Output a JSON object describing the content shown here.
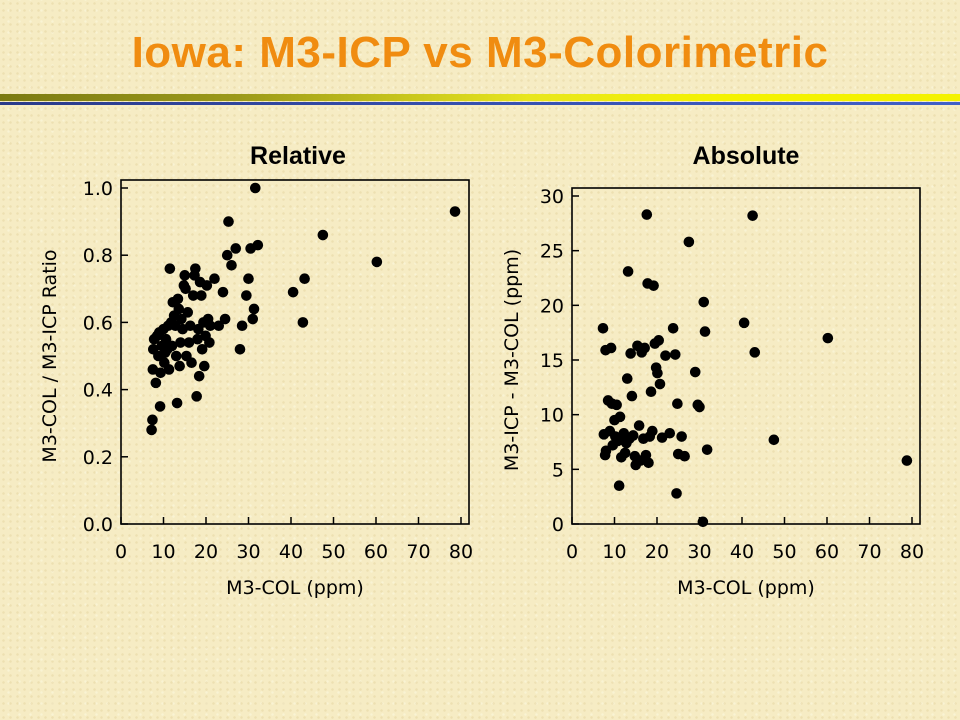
{
  "slide": {
    "title": "Iowa: M3-ICP vs M3-Colorimetric",
    "title_color": "#f08c10",
    "background_color": "#f6ecc4"
  },
  "chart_data": [
    {
      "type": "scatter",
      "title": "Relative",
      "xlabel": "M3-COL (ppm)",
      "ylabel": "M3-COL / M3-ICP Ratio",
      "xlim": [
        0,
        80
      ],
      "ylim": [
        0,
        1.0
      ],
      "x_ticks": [
        "0",
        "10",
        "20",
        "30",
        "40",
        "50",
        "60",
        "70",
        "80"
      ],
      "y_ticks": [
        "0.0",
        "0.2",
        "0.4",
        "0.6",
        "0.8",
        "1.0"
      ],
      "grid": false,
      "marker_color": "#000000",
      "points": [
        [
          7.2,
          0.28
        ],
        [
          7.4,
          0.31
        ],
        [
          7.5,
          0.46
        ],
        [
          7.6,
          0.52
        ],
        [
          7.8,
          0.55
        ],
        [
          8.2,
          0.42
        ],
        [
          8.5,
          0.56
        ],
        [
          8.8,
          0.5
        ],
        [
          9.0,
          0.57
        ],
        [
          9.2,
          0.35
        ],
        [
          9.3,
          0.45
        ],
        [
          9.6,
          0.53
        ],
        [
          10.0,
          0.58
        ],
        [
          10.2,
          0.48
        ],
        [
          10.4,
          0.51
        ],
        [
          10.6,
          0.55
        ],
        [
          10.9,
          0.52
        ],
        [
          11.1,
          0.59
        ],
        [
          11.3,
          0.46
        ],
        [
          11.5,
          0.76
        ],
        [
          11.8,
          0.6
        ],
        [
          12.0,
          0.53
        ],
        [
          12.2,
          0.66
        ],
        [
          12.5,
          0.62
        ],
        [
          12.8,
          0.59
        ],
        [
          13.0,
          0.5
        ],
        [
          13.2,
          0.36
        ],
        [
          13.4,
          0.67
        ],
        [
          13.6,
          0.64
        ],
        [
          13.8,
          0.47
        ],
        [
          14.0,
          0.54
        ],
        [
          14.2,
          0.61
        ],
        [
          14.5,
          0.58
        ],
        [
          14.8,
          0.71
        ],
        [
          15.0,
          0.74
        ],
        [
          15.2,
          0.7
        ],
        [
          15.4,
          0.5
        ],
        [
          15.7,
          0.63
        ],
        [
          16.0,
          0.54
        ],
        [
          16.3,
          0.59
        ],
        [
          16.6,
          0.48
        ],
        [
          17.0,
          0.68
        ],
        [
          17.3,
          0.74
        ],
        [
          17.5,
          0.76
        ],
        [
          17.8,
          0.38
        ],
        [
          18.0,
          0.55
        ],
        [
          18.2,
          0.58
        ],
        [
          18.4,
          0.44
        ],
        [
          18.6,
          0.72
        ],
        [
          18.9,
          0.68
        ],
        [
          19.1,
          0.52
        ],
        [
          19.4,
          0.6
        ],
        [
          19.6,
          0.47
        ],
        [
          19.9,
          0.56
        ],
        [
          20.2,
          0.71
        ],
        [
          20.5,
          0.61
        ],
        [
          20.8,
          0.54
        ],
        [
          21.0,
          0.59
        ],
        [
          22.0,
          0.73
        ],
        [
          23.0,
          0.59
        ],
        [
          24.0,
          0.69
        ],
        [
          24.5,
          0.61
        ],
        [
          25.0,
          0.8
        ],
        [
          25.3,
          0.9
        ],
        [
          26.0,
          0.77
        ],
        [
          27.0,
          0.82
        ],
        [
          28.0,
          0.52
        ],
        [
          28.5,
          0.59
        ],
        [
          29.5,
          0.68
        ],
        [
          30.0,
          0.73
        ],
        [
          30.5,
          0.82
        ],
        [
          31.0,
          0.61
        ],
        [
          31.3,
          0.64
        ],
        [
          31.6,
          1.0
        ],
        [
          32.2,
          0.83
        ],
        [
          40.5,
          0.69
        ],
        [
          42.8,
          0.6
        ],
        [
          43.2,
          0.73
        ],
        [
          47.5,
          0.86
        ],
        [
          60.2,
          0.78
        ],
        [
          78.6,
          0.93
        ]
      ]
    },
    {
      "type": "scatter",
      "title": "Absolute",
      "xlabel": "M3-COL (ppm)",
      "ylabel": "M3-ICP  -  M3-COL (ppm)",
      "xlim": [
        0,
        80
      ],
      "ylim": [
        0,
        30
      ],
      "x_ticks": [
        "0",
        "10",
        "20",
        "30",
        "40",
        "50",
        "60",
        "70",
        "80"
      ],
      "y_ticks": [
        "0",
        "5",
        "10",
        "15",
        "20",
        "25",
        "30"
      ],
      "grid": false,
      "marker_color": "#000000",
      "points": [
        [
          7.3,
          17.9
        ],
        [
          7.5,
          8.2
        ],
        [
          7.8,
          6.3
        ],
        [
          7.9,
          15.9
        ],
        [
          8.0,
          6.7
        ],
        [
          8.5,
          11.3
        ],
        [
          8.9,
          8.5
        ],
        [
          9.2,
          16.1
        ],
        [
          9.4,
          11.0
        ],
        [
          9.6,
          7.2
        ],
        [
          10.0,
          9.5
        ],
        [
          10.2,
          8.0
        ],
        [
          10.5,
          10.9
        ],
        [
          10.8,
          7.6
        ],
        [
          11.1,
          3.5
        ],
        [
          11.3,
          9.8
        ],
        [
          11.6,
          6.1
        ],
        [
          11.9,
          7.9
        ],
        [
          12.2,
          8.3
        ],
        [
          12.5,
          6.5
        ],
        [
          12.8,
          7.4
        ],
        [
          13.0,
          13.3
        ],
        [
          13.2,
          23.1
        ],
        [
          13.5,
          7.8
        ],
        [
          13.8,
          15.6
        ],
        [
          14.1,
          11.7
        ],
        [
          14.4,
          8.1
        ],
        [
          14.8,
          6.2
        ],
        [
          15.0,
          5.4
        ],
        [
          15.4,
          16.3
        ],
        [
          15.8,
          9.0
        ],
        [
          16.1,
          5.8
        ],
        [
          16.4,
          15.7
        ],
        [
          16.8,
          7.8
        ],
        [
          17.1,
          16.1
        ],
        [
          17.4,
          6.3
        ],
        [
          17.6,
          28.3
        ],
        [
          17.8,
          22.0
        ],
        [
          18.0,
          5.6
        ],
        [
          18.3,
          8.0
        ],
        [
          18.6,
          12.1
        ],
        [
          18.9,
          8.5
        ],
        [
          19.2,
          21.8
        ],
        [
          19.5,
          16.5
        ],
        [
          19.8,
          14.3
        ],
        [
          20.1,
          13.8
        ],
        [
          20.4,
          16.8
        ],
        [
          20.7,
          12.8
        ],
        [
          21.2,
          7.9
        ],
        [
          22.0,
          15.4
        ],
        [
          23.0,
          8.3
        ],
        [
          23.8,
          17.9
        ],
        [
          24.3,
          15.5
        ],
        [
          24.6,
          2.8
        ],
        [
          24.8,
          11.0
        ],
        [
          25.0,
          6.4
        ],
        [
          25.8,
          8.0
        ],
        [
          26.5,
          6.2
        ],
        [
          27.5,
          25.8
        ],
        [
          29.0,
          13.9
        ],
        [
          29.6,
          10.9
        ],
        [
          30.0,
          10.7
        ],
        [
          30.8,
          0.2
        ],
        [
          31.0,
          20.3
        ],
        [
          31.3,
          17.6
        ],
        [
          31.8,
          6.8
        ],
        [
          40.5,
          18.4
        ],
        [
          42.5,
          28.2
        ],
        [
          43.0,
          15.7
        ],
        [
          47.5,
          7.7
        ],
        [
          60.2,
          17.0
        ],
        [
          78.8,
          5.8
        ]
      ]
    }
  ]
}
